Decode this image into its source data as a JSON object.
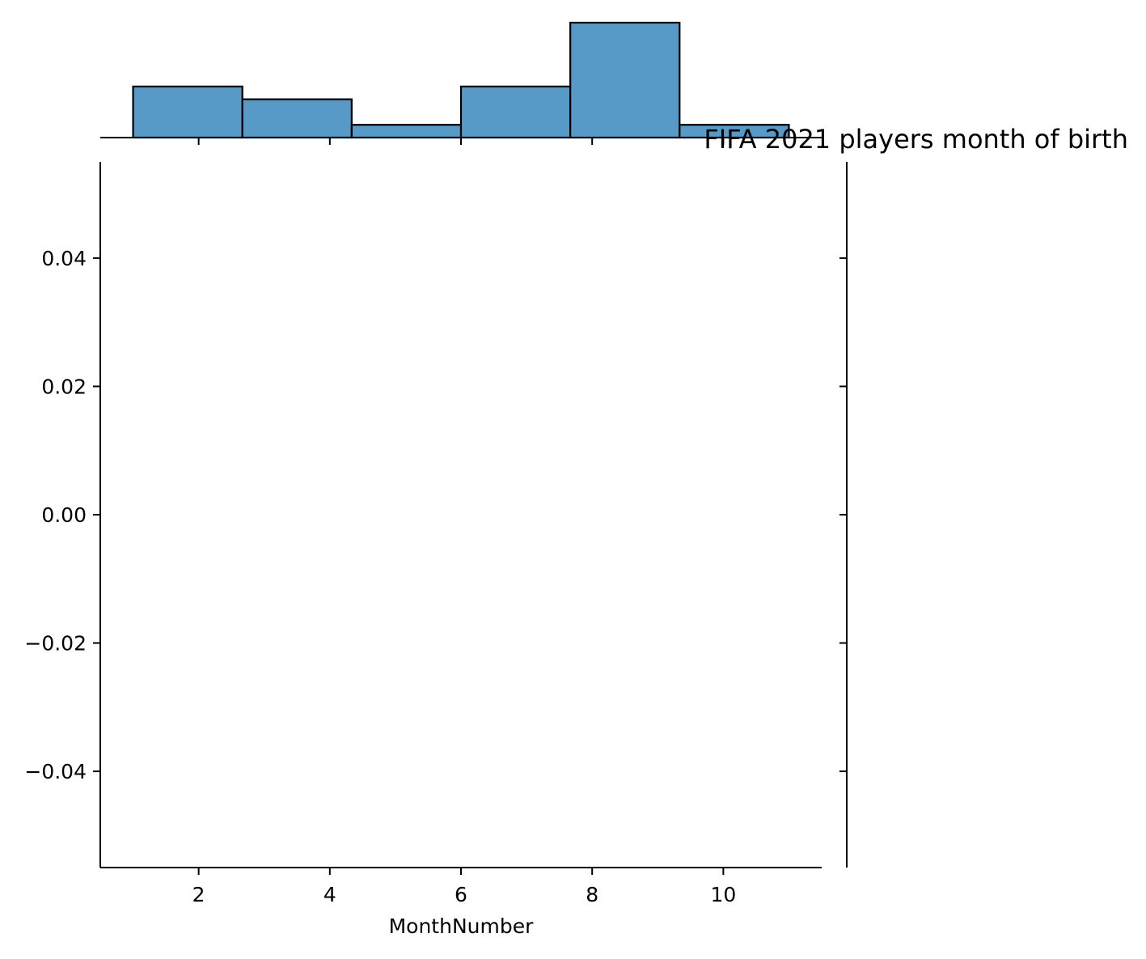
{
  "chart_data": {
    "type": "bar",
    "subtype": "joint-plot-marginal-histogram",
    "title": "FIFA 2021 players month of birth",
    "xlabel": "MonthNumber",
    "ylabel": "",
    "xlim": [
      0.5,
      11.5
    ],
    "ylim": [
      -0.055,
      0.055
    ],
    "x_ticks": [
      2,
      4,
      6,
      8,
      10
    ],
    "y_ticks": [
      0.04,
      0.02,
      0.0,
      -0.02,
      -0.04
    ],
    "x_tick_labels": [
      "2",
      "4",
      "6",
      "8",
      "10"
    ],
    "y_tick_labels": [
      "0.04",
      "0.02",
      "0.00",
      "−0.02",
      "−0.04"
    ],
    "grid": false,
    "bar_color": "#5799c7",
    "edge_color": "#000000",
    "histogram": {
      "bin_edges": [
        1.0,
        2.6667,
        4.3333,
        6.0,
        7.6667,
        9.3333,
        11.0
      ],
      "counts": [
        4,
        3,
        1,
        4,
        9,
        1
      ]
    }
  }
}
